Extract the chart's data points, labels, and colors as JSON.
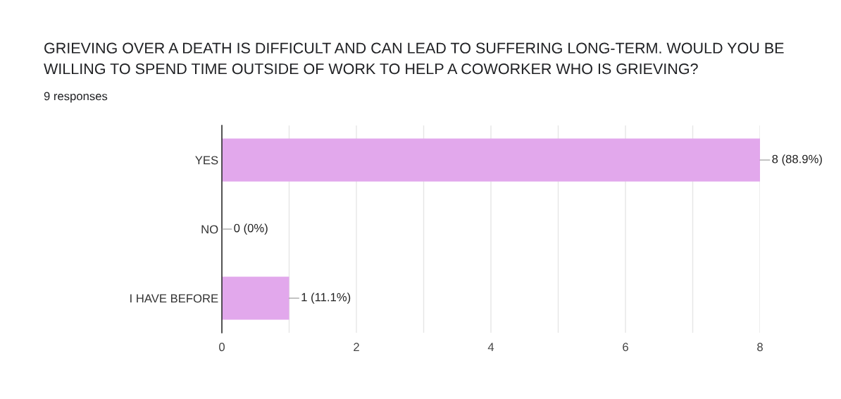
{
  "chart_data": {
    "type": "bar",
    "orientation": "horizontal",
    "title": "GRIEVING OVER A DEATH IS DIFFICULT AND CAN LEAD TO SUFFERING LONG-TERM. WOULD YOU BE WILLING TO SPEND TIME OUTSIDE OF WORK TO HELP A COWORKER WHO IS GRIEVING?",
    "subtitle": "9 responses",
    "categories": [
      "YES",
      "NO",
      "I HAVE BEFORE"
    ],
    "values": [
      8,
      0,
      1
    ],
    "value_labels": [
      "8 (88.9%)",
      "0 (0%)",
      "1 (11.1%)"
    ],
    "color": "#e2a8ec",
    "xlim": [
      0,
      8
    ],
    "xticks": [
      0,
      {
        "value": 1,
        "label": null
      },
      2,
      {
        "value": 3,
        "label": null
      },
      4,
      {
        "value": 5,
        "label": null
      },
      6,
      {
        "value": 7,
        "label": null
      },
      8
    ],
    "grid": "x",
    "legend": false
  }
}
